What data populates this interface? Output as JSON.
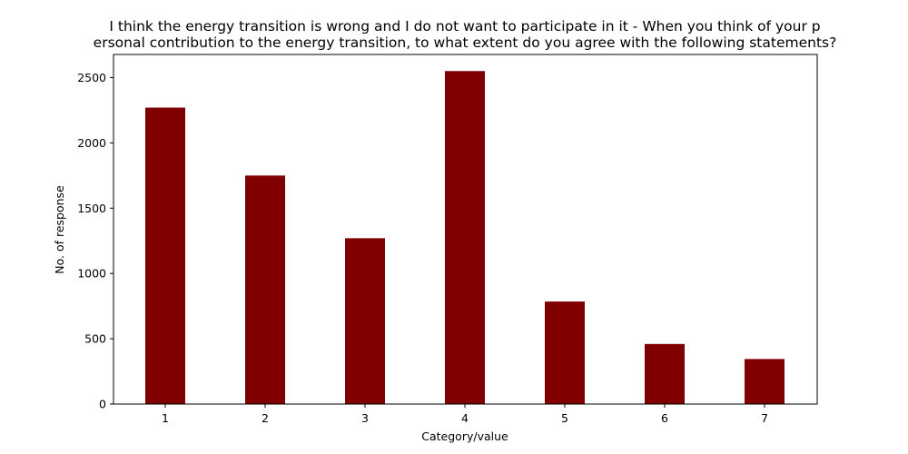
{
  "chart_data": {
    "type": "bar",
    "title_lines": [
      "I think the energy transition is wrong and I do not want to participate in it - When you think of your p",
      "ersonal contribution to the energy transition, to what extent do you agree with the following statements?"
    ],
    "xlabel": "Category/value",
    "ylabel": "No. of response",
    "categories": [
      "1",
      "2",
      "3",
      "4",
      "5",
      "6",
      "7"
    ],
    "values": [
      2270,
      1750,
      1270,
      2550,
      785,
      460,
      345
    ],
    "yticks": [
      0,
      500,
      1000,
      1500,
      2000,
      2500
    ],
    "ylim": [
      0,
      2677
    ],
    "bar_color": "#800000",
    "grid": false,
    "legend": false
  }
}
